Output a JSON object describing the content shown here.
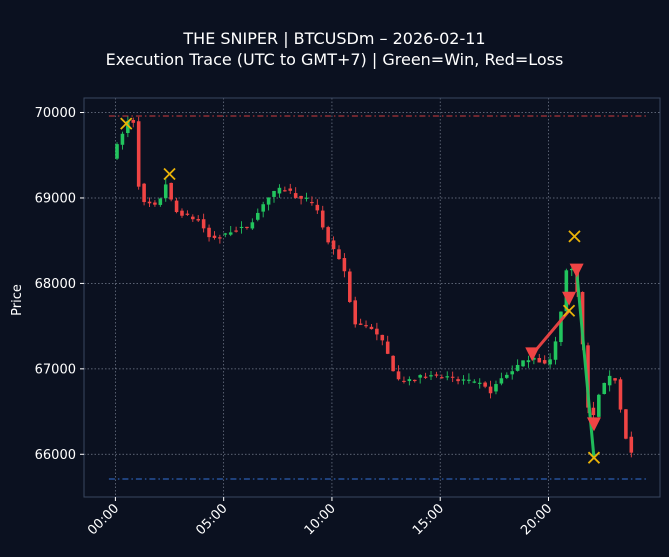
{
  "chart_data": {
    "type": "candlestick",
    "title": "THE SNIPER | BTCUSDm – 2026-02-11",
    "subtitle": "Execution Trace (UTC to GMT+7) | Green=Win, Red=Loss",
    "xlabel": "",
    "ylabel": "Price",
    "x_ticks": [
      "00:00",
      "05:00",
      "10:00",
      "15:00",
      "20:00"
    ],
    "y_ticks": [
      66000,
      67000,
      68000,
      69000,
      70000
    ],
    "ylim": [
      65500,
      70170
    ],
    "xlim_hours": [
      -1.45,
      25.15
    ],
    "grid": true,
    "colors": {
      "background": "#0b1120",
      "up": "#22c55e",
      "down": "#ef4444",
      "entry_marker": "#ef4444",
      "exit_marker": "#eab308",
      "upper_reference_line": "#ef4444",
      "lower_reference_line": "#3b82f6"
    },
    "reference_lines": [
      {
        "price": 69960,
        "style": "dashdot",
        "color": "#ef4444"
      },
      {
        "price": 65710,
        "style": "dashdot",
        "color": "#3b82f6"
      }
    ],
    "anchors": [
      [
        -0.05,
        69480
      ],
      [
        0.4,
        69720
      ],
      [
        0.7,
        69900
      ],
      [
        0.95,
        69890
      ],
      [
        1.1,
        69650
      ],
      [
        1.25,
        68900
      ],
      [
        1.5,
        68950
      ],
      [
        2.0,
        68900
      ],
      [
        2.2,
        69000
      ],
      [
        2.5,
        69200
      ],
      [
        2.8,
        68850
      ],
      [
        3.5,
        68780
      ],
      [
        4.0,
        68730
      ],
      [
        4.5,
        68520
      ],
      [
        5.0,
        68560
      ],
      [
        5.5,
        68620
      ],
      [
        6.2,
        68660
      ],
      [
        6.6,
        68780
      ],
      [
        7.0,
        68960
      ],
      [
        7.6,
        69100
      ],
      [
        8.1,
        69100
      ],
      [
        8.6,
        68980
      ],
      [
        9.0,
        68960
      ],
      [
        9.4,
        68900
      ],
      [
        9.7,
        68650
      ],
      [
        10.0,
        68450
      ],
      [
        10.5,
        68280
      ],
      [
        10.8,
        68070
      ],
      [
        11.1,
        67520
      ],
      [
        11.6,
        67520
      ],
      [
        12.0,
        67450
      ],
      [
        12.5,
        67300
      ],
      [
        12.8,
        67100
      ],
      [
        13.1,
        66880
      ],
      [
        13.6,
        66850
      ],
      [
        14.1,
        66900
      ],
      [
        14.6,
        66940
      ],
      [
        15.2,
        66910
      ],
      [
        15.8,
        66870
      ],
      [
        16.4,
        66840
      ],
      [
        17.0,
        66820
      ],
      [
        17.5,
        66720
      ],
      [
        17.8,
        66860
      ],
      [
        18.3,
        66950
      ],
      [
        18.8,
        67060
      ],
      [
        19.4,
        67150
      ],
      [
        19.9,
        67050
      ],
      [
        20.3,
        67120
      ],
      [
        20.6,
        67500
      ],
      [
        20.95,
        68150
      ],
      [
        21.1,
        67700
      ],
      [
        21.25,
        68380
      ],
      [
        21.55,
        67650
      ],
      [
        21.85,
        66900
      ],
      [
        22.0,
        66350
      ],
      [
        22.3,
        66500
      ],
      [
        22.5,
        66750
      ],
      [
        22.8,
        66850
      ],
      [
        23.1,
        66950
      ],
      [
        23.3,
        66800
      ],
      [
        23.5,
        66450
      ],
      [
        23.7,
        66200
      ],
      [
        23.85,
        66020
      ]
    ],
    "entries": [
      {
        "time": 19.25,
        "price": 67170
      },
      {
        "time": 20.95,
        "price": 67820
      },
      {
        "time": 21.3,
        "price": 68150
      },
      {
        "time": 22.1,
        "price": 66350
      }
    ],
    "exits": [
      {
        "time": 0.5,
        "price": 69870
      },
      {
        "time": 2.5,
        "price": 69280
      },
      {
        "time": 20.95,
        "price": 67680
      },
      {
        "time": 21.2,
        "price": 68550
      },
      {
        "time": 22.1,
        "price": 65960
      }
    ],
    "trades": [
      {
        "from": [
          19.25,
          67170
        ],
        "to": [
          20.95,
          67680
        ],
        "result": "loss"
      },
      {
        "from": [
          21.3,
          68150
        ],
        "to": [
          22.1,
          65960
        ],
        "result": "win"
      }
    ]
  }
}
